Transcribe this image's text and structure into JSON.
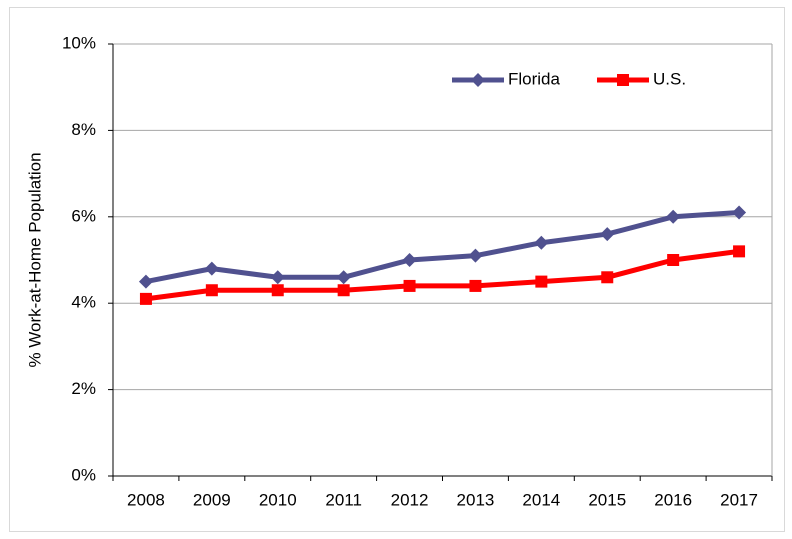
{
  "chart_data": {
    "type": "line",
    "ylabel": "% Work-at-Home Population",
    "categories": [
      "2008",
      "2009",
      "2010",
      "2011",
      "2012",
      "2013",
      "2014",
      "2015",
      "2016",
      "2017"
    ],
    "series": [
      {
        "name": "Florida",
        "color": "#50518f",
        "marker": "diamond",
        "values": [
          4.5,
          4.8,
          4.6,
          4.6,
          5.0,
          5.1,
          5.4,
          5.6,
          6.0,
          6.1
        ]
      },
      {
        "name": "U.S.",
        "color": "#ff0000",
        "marker": "square",
        "values": [
          4.1,
          4.3,
          4.3,
          4.3,
          4.4,
          4.4,
          4.5,
          4.6,
          5.0,
          5.2
        ]
      }
    ],
    "ylim": [
      0,
      10
    ],
    "yticks": [
      {
        "value": 0,
        "label": "0%"
      },
      {
        "value": 2,
        "label": "2%"
      },
      {
        "value": 4,
        "label": "4%"
      },
      {
        "value": 6,
        "label": "6%"
      },
      {
        "value": 8,
        "label": "8%"
      },
      {
        "value": 10,
        "label": "10%"
      }
    ],
    "grid": true,
    "legend": "upper right"
  }
}
